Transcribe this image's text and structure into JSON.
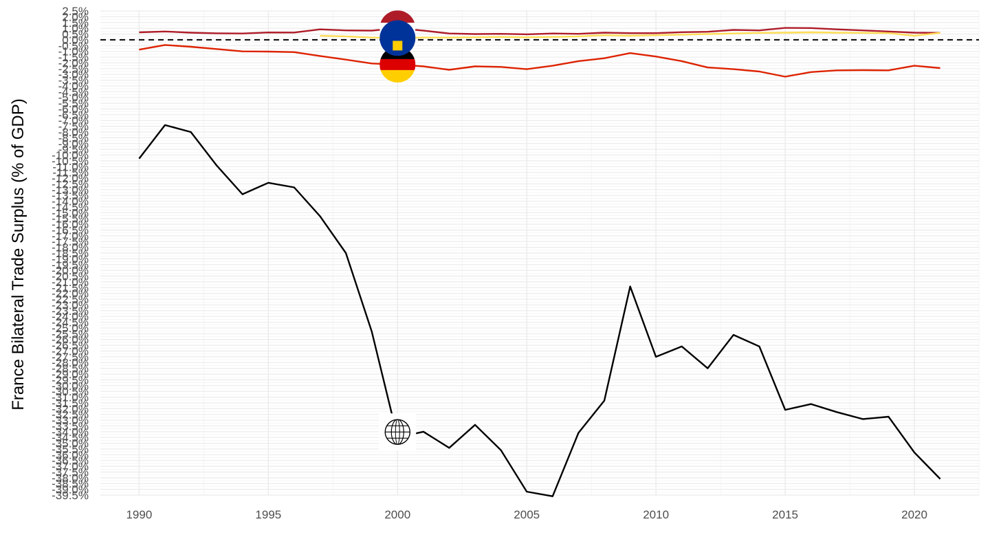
{
  "chart_data": {
    "type": "line",
    "title": "",
    "xlabel": "",
    "ylabel": "France Bilateral Trade Surplus (% of GDP)",
    "xlim": [
      1988.5,
      2022.5
    ],
    "ylim": [
      -39.5,
      2.5
    ],
    "x_ticks": [
      1990,
      1995,
      2000,
      2005,
      2010,
      2015,
      2020
    ],
    "y_tick_start": 2.5,
    "y_tick_step": -0.5,
    "y_tick_count": 85,
    "y_tick_suffix": "%",
    "grid": true,
    "reference_line": 0,
    "series": [
      {
        "icon": "globe-icon",
        "color": "#000000",
        "x": [
          1990,
          1991,
          1992,
          1993,
          1994,
          1995,
          1996,
          1997,
          1998,
          1999,
          2000,
          2001,
          2002,
          2003,
          2004,
          2005,
          2006,
          2007,
          2008,
          2009,
          2010,
          2011,
          2012,
          2013,
          2014,
          2015,
          2016,
          2017,
          2018,
          2019,
          2020,
          2021
        ],
        "values": [
          -10.3,
          -7.4,
          -8.0,
          -10.9,
          -13.4,
          -12.4,
          -12.8,
          -15.3,
          -18.5,
          -25.3,
          -34.5,
          -34.0,
          -35.4,
          -33.4,
          -35.6,
          -39.2,
          -39.6,
          -34.1,
          -31.3,
          -21.4,
          -27.5,
          -26.6,
          -28.5,
          -25.6,
          -26.6,
          -32.1,
          -31.6,
          -32.3,
          -32.9,
          -32.7,
          -35.8,
          -38.1
        ]
      },
      {
        "icon": "germany-flag-icon",
        "color": "#dd2200",
        "x": [
          1990,
          1991,
          1992,
          1993,
          1994,
          1995,
          1996,
          1997,
          1998,
          1999,
          2000,
          2001,
          2002,
          2003,
          2004,
          2005,
          2006,
          2007,
          2008,
          2009,
          2010,
          2011,
          2012,
          2013,
          2014,
          2015,
          2016,
          2017,
          2018,
          2019,
          2020,
          2021
        ],
        "values": [
          -0.85,
          -0.45,
          -0.6,
          -0.8,
          -1.0,
          -1.02,
          -1.07,
          -1.4,
          -1.72,
          -2.05,
          -2.15,
          -2.3,
          -2.6,
          -2.3,
          -2.35,
          -2.55,
          -2.25,
          -1.85,
          -1.6,
          -1.15,
          -1.45,
          -1.85,
          -2.4,
          -2.55,
          -2.75,
          -3.2,
          -2.8,
          -2.65,
          -2.63,
          -2.65,
          -2.25,
          -2.45
        ]
      },
      {
        "icon": "netherlands-flag-icon",
        "color": "#ae1c28",
        "x": [
          1990,
          1991,
          1992,
          1993,
          1994,
          1995,
          1996,
          1997,
          1998,
          1999,
          2000,
          2001,
          2002,
          2003,
          2004,
          2005,
          2006,
          2007,
          2008,
          2009,
          2010,
          2011,
          2012,
          2013,
          2014,
          2015,
          2016,
          2017,
          2018,
          2019,
          2020,
          2021
        ],
        "values": [
          0.65,
          0.72,
          0.62,
          0.57,
          0.55,
          0.64,
          0.63,
          0.91,
          0.82,
          0.8,
          1.0,
          0.8,
          0.55,
          0.5,
          0.52,
          0.48,
          0.55,
          0.52,
          0.62,
          0.58,
          0.58,
          0.66,
          0.7,
          0.86,
          0.82,
          1.03,
          1.02,
          0.91,
          0.82,
          0.72,
          0.62,
          0.6
        ]
      },
      {
        "icon": "eu-flag-icon",
        "color": "#ffdd55",
        "x": [
          1997,
          1998,
          1999,
          2000,
          2001,
          2002,
          2003,
          2004,
          2005,
          2006,
          2007,
          2008,
          2009,
          2010,
          2011,
          2012,
          2013,
          2014,
          2015,
          2016,
          2017,
          2018,
          2019,
          2020,
          2021
        ],
        "values": [
          0.35,
          0.3,
          0.2,
          0.15,
          0.2,
          0.2,
          0.22,
          0.25,
          0.22,
          0.25,
          0.3,
          0.4,
          0.35,
          0.4,
          0.45,
          0.5,
          0.55,
          0.6,
          0.62,
          0.65,
          0.62,
          0.6,
          0.58,
          0.35,
          0.6
        ]
      }
    ]
  }
}
